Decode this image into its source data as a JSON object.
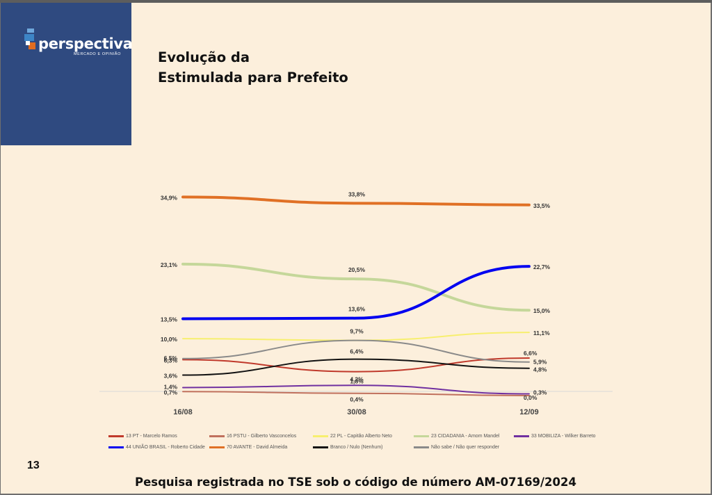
{
  "brand": {
    "name": "perspectiva",
    "tagline": "MERCADO E OPINIÃO",
    "panel_color": "#2f4a80"
  },
  "title": {
    "line1": "Evolução da",
    "line2": "Estimulada para Prefeito"
  },
  "page_number": "13",
  "footer": "Pesquisa registrada no TSE sob o código de número AM-07169/2024",
  "chart_data": {
    "type": "line",
    "categories": [
      "16/08",
      "30/08",
      "12/09"
    ],
    "ylim": [
      0,
      40
    ],
    "grid": false,
    "legend_position": "bottom",
    "series": [
      {
        "name": "13 PT - Marcelo Ramos",
        "color": "#c0392b",
        "width": 2,
        "values": [
          6.3,
          4.2,
          6.6
        ],
        "labels": [
          "6,3%",
          "4,2%",
          "6,6%"
        ]
      },
      {
        "name": "16 PSTU - Gilberto Vasconcelos",
        "color": "#c0705d",
        "width": 2,
        "values": [
          0.7,
          0.4,
          0.0
        ],
        "labels": [
          "0,7%",
          "0,4%",
          "0,0%"
        ]
      },
      {
        "name": "22 PL - Capitão Alberto Neto",
        "color": "#f7ef6e",
        "width": 2,
        "values": [
          10.0,
          9.7,
          11.1
        ],
        "labels": [
          "10,0%",
          "",
          "11,1%"
        ]
      },
      {
        "name": "23 CIDADANIA - Amom Mandel",
        "color": "#c5d79a",
        "width": 4,
        "values": [
          23.1,
          20.5,
          15.0
        ],
        "labels": [
          "23,1%",
          "20,5%",
          "15,0%"
        ]
      },
      {
        "name": "33 MOBILIZA - Wilker Barreto",
        "color": "#7030a0",
        "width": 2,
        "values": [
          1.4,
          1.8,
          0.3
        ],
        "labels": [
          "1,4%",
          "1,8%",
          "0,3%"
        ]
      },
      {
        "name": "44 UNIÃO BRASIL - Roberto Cidade",
        "color": "#0000f0",
        "width": 4,
        "values": [
          13.5,
          13.6,
          22.7
        ],
        "labels": [
          "13,5%",
          "13,6%",
          "22,7%"
        ]
      },
      {
        "name": "70 AVANTE - David Almeida",
        "color": "#e07025",
        "width": 4,
        "values": [
          34.9,
          33.8,
          33.5
        ],
        "labels": [
          "34,9%",
          "33,8%",
          "33,5%"
        ]
      },
      {
        "name": "Branco / Nulo (Nenhum)",
        "color": "#111111",
        "width": 2,
        "values": [
          3.6,
          6.4,
          4.8
        ],
        "labels": [
          "3,6%",
          "6,4%",
          "4,8%"
        ]
      },
      {
        "name": "Não sabe / Não quer responder",
        "color": "#8a8a8a",
        "width": 2,
        "values": [
          6.5,
          9.7,
          5.9
        ],
        "labels": [
          "6,5%",
          "9,7%",
          "5,9%"
        ]
      }
    ]
  }
}
